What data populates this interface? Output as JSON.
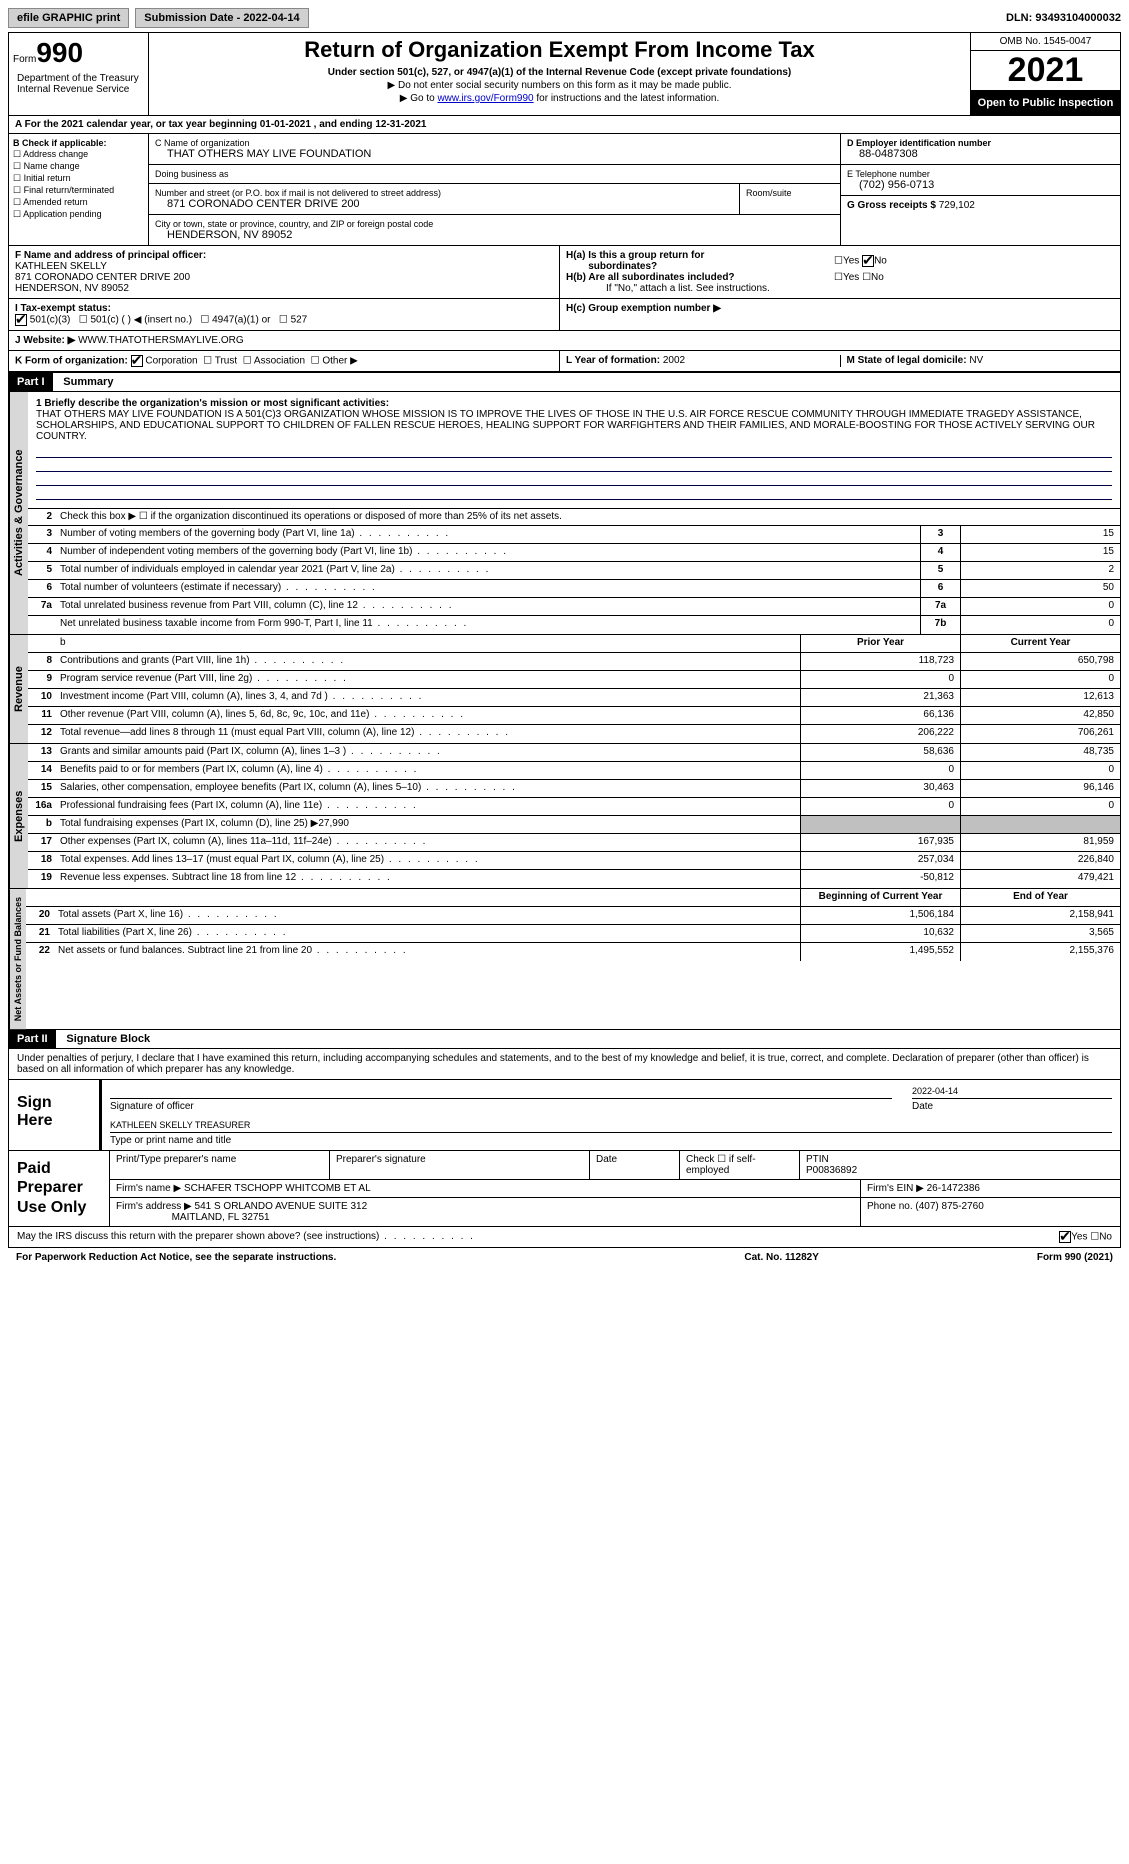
{
  "topbar": {
    "efile": "efile GRAPHIC print",
    "submission": "Submission Date - 2022-04-14",
    "dln": "DLN: 93493104000032"
  },
  "header": {
    "form_label": "Form",
    "form_num": "990",
    "title": "Return of Organization Exempt From Income Tax",
    "subtitle": "Under section 501(c), 527, or 4947(a)(1) of the Internal Revenue Code (except private foundations)",
    "note1": "▶ Do not enter social security numbers on this form as it may be made public.",
    "note2_pre": "▶ Go to ",
    "note2_link": "www.irs.gov/Form990",
    "note2_post": " for instructions and the latest information.",
    "omb": "OMB No. 1545-0047",
    "year": "2021",
    "open_public": "Open to Public Inspection",
    "dept": "Department of the Treasury Internal Revenue Service"
  },
  "row_a": "A For the 2021 calendar year, or tax year beginning 01-01-2021    , and ending 12-31-2021",
  "col_b": {
    "label": "B Check if applicable:",
    "items": [
      "Address change",
      "Name change",
      "Initial return",
      "Final return/terminated",
      "Amended return",
      "Application pending"
    ]
  },
  "col_c": {
    "name_label": "C Name of organization",
    "name": "THAT OTHERS MAY LIVE FOUNDATION",
    "dba_label": "Doing business as",
    "dba": "",
    "street_label": "Number and street (or P.O. box if mail is not delivered to street address)",
    "street": "871 CORONADO CENTER DRIVE 200",
    "room_label": "Room/suite",
    "city_label": "City or town, state or province, country, and ZIP or foreign postal code",
    "city": "HENDERSON, NV  89052"
  },
  "col_d": {
    "ein_label": "D Employer identification number",
    "ein": "88-0487308",
    "phone_label": "E Telephone number",
    "phone": "(702) 956-0713",
    "gross_label": "G Gross receipts $",
    "gross": "729,102"
  },
  "row_f": {
    "label": "F  Name and address of principal officer:",
    "name": "KATHLEEN SKELLY",
    "addr1": "871 CORONADO CENTER DRIVE 200",
    "addr2": "HENDERSON, NV  89052"
  },
  "row_h": {
    "ha_label": "H(a)  Is this a group return for",
    "ha_sub": "subordinates?",
    "hb_label": "H(b)  Are all subordinates included?",
    "hb_note": "If \"No,\" attach a list. See instructions.",
    "hc_label": "H(c)  Group exemption number ▶"
  },
  "row_i": {
    "label": "I  Tax-exempt status:",
    "opts": [
      "501(c)(3)",
      "501(c) (  ) ◀ (insert no.)",
      "4947(a)(1) or",
      "527"
    ]
  },
  "row_j": {
    "label": "J  Website: ▶",
    "val": "WWW.THATOTHERSMAYLIVE.ORG"
  },
  "row_k": {
    "label": "K Form of organization:",
    "opts": [
      "Corporation",
      "Trust",
      "Association",
      "Other ▶"
    ]
  },
  "row_l": {
    "label": "L Year of formation:",
    "val": "2002"
  },
  "row_m": {
    "label": "M State of legal domicile:",
    "val": "NV"
  },
  "part1": {
    "hdr": "Part I",
    "title": "Summary",
    "mission_label": "1  Briefly describe the organization's mission or most significant activities:",
    "mission": "THAT OTHERS MAY LIVE FOUNDATION IS A 501(C)3 ORGANIZATION WHOSE MISSION IS TO IMPROVE THE LIVES OF THOSE IN THE U.S. AIR FORCE RESCUE COMMUNITY THROUGH IMMEDIATE TRAGEDY ASSISTANCE, SCHOLARSHIPS, AND EDUCATIONAL SUPPORT TO CHILDREN OF FALLEN RESCUE HEROES, HEALING SUPPORT FOR WARFIGHTERS AND THEIR FAMILIES, AND MORALE-BOOSTING FOR THOSE ACTIVELY SERVING OUR COUNTRY.",
    "line2": "Check this box ▶ ☐ if the organization discontinued its operations or disposed of more than 25% of its net assets.",
    "gov_lines": [
      {
        "n": "3",
        "t": "Number of voting members of the governing body (Part VI, line 1a)",
        "b": "3",
        "v": "15"
      },
      {
        "n": "4",
        "t": "Number of independent voting members of the governing body (Part VI, line 1b)",
        "b": "4",
        "v": "15"
      },
      {
        "n": "5",
        "t": "Total number of individuals employed in calendar year 2021 (Part V, line 2a)",
        "b": "5",
        "v": "2"
      },
      {
        "n": "6",
        "t": "Total number of volunteers (estimate if necessary)",
        "b": "6",
        "v": "50"
      },
      {
        "n": "7a",
        "t": "Total unrelated business revenue from Part VIII, column (C), line 12",
        "b": "7a",
        "v": "0"
      },
      {
        "n": "",
        "t": "Net unrelated business taxable income from Form 990-T, Part I, line 11",
        "b": "7b",
        "v": "0"
      }
    ],
    "col_hdrs": {
      "b": "b",
      "prior": "Prior Year",
      "current": "Current Year"
    },
    "revenue": [
      {
        "n": "8",
        "t": "Contributions and grants (Part VIII, line 1h)",
        "p": "118,723",
        "c": "650,798"
      },
      {
        "n": "9",
        "t": "Program service revenue (Part VIII, line 2g)",
        "p": "0",
        "c": "0"
      },
      {
        "n": "10",
        "t": "Investment income (Part VIII, column (A), lines 3, 4, and 7d )",
        "p": "21,363",
        "c": "12,613"
      },
      {
        "n": "11",
        "t": "Other revenue (Part VIII, column (A), lines 5, 6d, 8c, 9c, 10c, and 11e)",
        "p": "66,136",
        "c": "42,850"
      },
      {
        "n": "12",
        "t": "Total revenue—add lines 8 through 11 (must equal Part VIII, column (A), line 12)",
        "p": "206,222",
        "c": "706,261"
      }
    ],
    "expenses": [
      {
        "n": "13",
        "t": "Grants and similar amounts paid (Part IX, column (A), lines 1–3 )",
        "p": "58,636",
        "c": "48,735"
      },
      {
        "n": "14",
        "t": "Benefits paid to or for members (Part IX, column (A), line 4)",
        "p": "0",
        "c": "0"
      },
      {
        "n": "15",
        "t": "Salaries, other compensation, employee benefits (Part IX, column (A), lines 5–10)",
        "p": "30,463",
        "c": "96,146"
      },
      {
        "n": "16a",
        "t": "Professional fundraising fees (Part IX, column (A), line 11e)",
        "p": "0",
        "c": "0"
      },
      {
        "n": "b",
        "t": "Total fundraising expenses (Part IX, column (D), line 25) ▶27,990",
        "p": "",
        "c": "",
        "gray": true
      },
      {
        "n": "17",
        "t": "Other expenses (Part IX, column (A), lines 11a–11d, 11f–24e)",
        "p": "167,935",
        "c": "81,959"
      },
      {
        "n": "18",
        "t": "Total expenses. Add lines 13–17 (must equal Part IX, column (A), line 25)",
        "p": "257,034",
        "c": "226,840"
      },
      {
        "n": "19",
        "t": "Revenue less expenses. Subtract line 18 from line 12",
        "p": "-50,812",
        "c": "479,421"
      }
    ],
    "net_hdrs": {
      "begin": "Beginning of Current Year",
      "end": "End of Year"
    },
    "net": [
      {
        "n": "20",
        "t": "Total assets (Part X, line 16)",
        "p": "1,506,184",
        "c": "2,158,941"
      },
      {
        "n": "21",
        "t": "Total liabilities (Part X, line 26)",
        "p": "10,632",
        "c": "3,565"
      },
      {
        "n": "22",
        "t": "Net assets or fund balances. Subtract line 21 from line 20",
        "p": "1,495,552",
        "c": "2,155,376"
      }
    ]
  },
  "part2": {
    "hdr": "Part II",
    "title": "Signature Block",
    "penalty": "Under penalties of perjury, I declare that I have examined this return, including accompanying schedules and statements, and to the best of my knowledge and belief, it is true, correct, and complete. Declaration of preparer (other than officer) is based on all information of which preparer has any knowledge.",
    "sign_here": "Sign Here",
    "sig_officer": "Signature of officer",
    "sig_date": "2022-04-14",
    "date_label": "Date",
    "officer_name": "KATHLEEN SKELLY  TREASURER",
    "officer_label": "Type or print name and title",
    "paid_prep": "Paid Preparer Use Only",
    "prep_name_label": "Print/Type preparer's name",
    "prep_sig_label": "Preparer's signature",
    "prep_date_label": "Date",
    "prep_check_label": "Check ☐ if self-employed",
    "ptin_label": "PTIN",
    "ptin": "P00836892",
    "firm_name_label": "Firm's name   ▶",
    "firm_name": "SCHAFER TSCHOPP WHITCOMB ET AL",
    "firm_ein_label": "Firm's EIN ▶",
    "firm_ein": "26-1472386",
    "firm_addr_label": "Firm's address ▶",
    "firm_addr": "541 S ORLANDO AVENUE SUITE 312",
    "firm_city": "MAITLAND, FL  32751",
    "firm_phone_label": "Phone no.",
    "firm_phone": "(407) 875-2760",
    "discuss": "May the IRS discuss this return with the preparer shown above? (see instructions)",
    "footer_left": "For Paperwork Reduction Act Notice, see the separate instructions.",
    "footer_mid": "Cat. No. 11282Y",
    "footer_right": "Form 990 (2021)"
  },
  "tabs": {
    "gov": "Activities & Governance",
    "rev": "Revenue",
    "exp": "Expenses",
    "net": "Net Assets or Fund Balances"
  },
  "yesno": {
    "yes": "Yes",
    "no": "No"
  }
}
